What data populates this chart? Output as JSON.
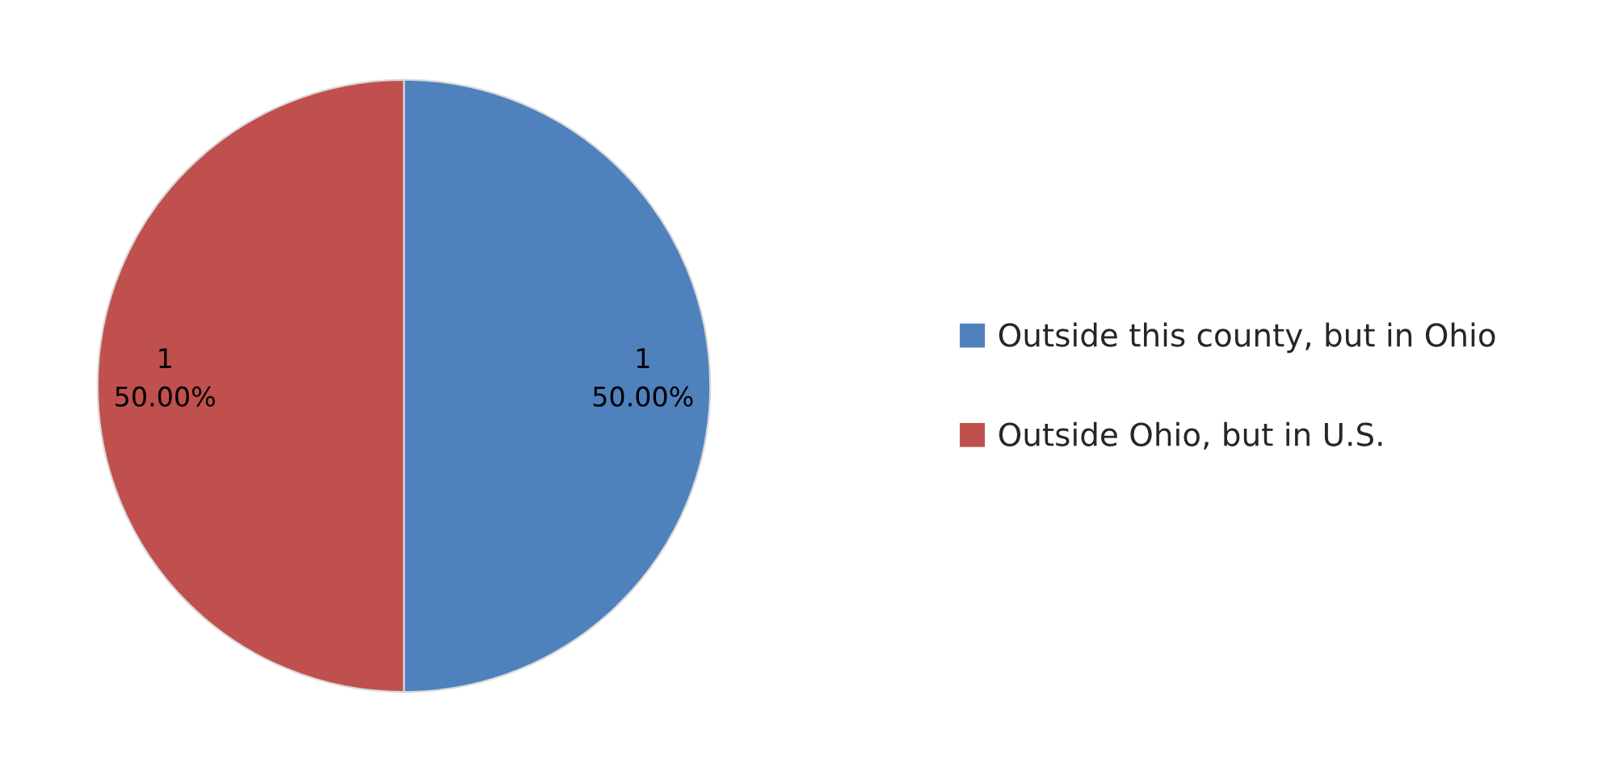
{
  "chart_data": {
    "type": "pie",
    "categories": [
      "Outside this county, but in Ohio",
      "Outside Ohio, but in U.S."
    ],
    "values": [
      1,
      1
    ],
    "colors": [
      "#4f81bd",
      "#c0504d"
    ],
    "value_labels": [
      "1\n50.00%",
      "1\n50.00%"
    ],
    "legend": "right"
  }
}
